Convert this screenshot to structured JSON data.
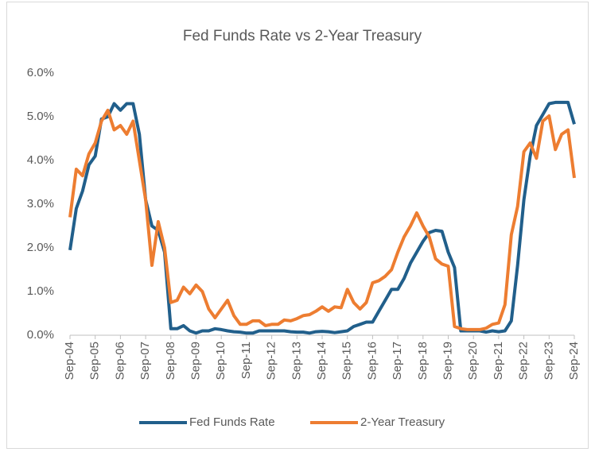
{
  "chart_data": {
    "type": "line",
    "title": "Fed Funds Rate vs 2-Year Treasury",
    "categories": [
      "Sep-04",
      null,
      null,
      null,
      "Sep-05",
      null,
      null,
      null,
      "Sep-06",
      null,
      null,
      null,
      "Sep-07",
      null,
      null,
      null,
      "Sep-08",
      null,
      null,
      null,
      "Sep-09",
      null,
      null,
      null,
      "Sep-10",
      null,
      null,
      null,
      "Sep-11",
      null,
      null,
      null,
      "Sep-12",
      null,
      null,
      null,
      "Sep-13",
      null,
      null,
      null,
      "Sep-14",
      null,
      null,
      null,
      "Sep-15",
      null,
      null,
      null,
      "Sep-16",
      null,
      null,
      null,
      "Sep-17",
      null,
      null,
      null,
      "Sep-18",
      null,
      null,
      null,
      "Sep-19",
      null,
      null,
      null,
      "Sep-20",
      null,
      null,
      null,
      "Sep-21",
      null,
      null,
      null,
      "Sep-22",
      null,
      null,
      null,
      "Sep-23",
      null,
      null,
      null,
      "Sep-24"
    ],
    "series": [
      {
        "name": "Fed Funds Rate",
        "color": "#215f8b",
        "values": [
          1.95,
          2.9,
          3.3,
          3.9,
          4.1,
          4.95,
          5.0,
          5.3,
          5.15,
          5.3,
          5.3,
          4.6,
          3.1,
          2.5,
          2.4,
          1.9,
          0.15,
          0.15,
          0.22,
          0.1,
          0.05,
          0.1,
          0.1,
          0.15,
          0.13,
          0.1,
          0.08,
          0.07,
          0.05,
          0.05,
          0.1,
          0.1,
          0.1,
          0.1,
          0.1,
          0.08,
          0.07,
          0.07,
          0.05,
          0.08,
          0.09,
          0.08,
          0.06,
          0.08,
          0.1,
          0.2,
          0.25,
          0.3,
          0.3,
          0.55,
          0.8,
          1.05,
          1.05,
          1.3,
          1.65,
          1.9,
          2.15,
          2.35,
          2.4,
          2.38,
          1.9,
          1.55,
          0.1,
          0.1,
          0.1,
          0.1,
          0.07,
          0.1,
          0.08,
          0.1,
          0.33,
          1.6,
          3.1,
          4.1,
          4.8,
          5.05,
          5.3,
          5.33,
          5.33,
          5.33,
          4.83
        ]
      },
      {
        "name": "2-Year Treasury",
        "color": "#ed7d31",
        "values": [
          2.7,
          3.8,
          3.65,
          4.15,
          4.4,
          4.9,
          5.15,
          4.7,
          4.8,
          4.6,
          4.9,
          4.0,
          3.1,
          1.6,
          2.6,
          2.0,
          0.75,
          0.8,
          1.1,
          0.95,
          1.15,
          1.0,
          0.6,
          0.4,
          0.6,
          0.8,
          0.45,
          0.25,
          0.25,
          0.33,
          0.33,
          0.22,
          0.25,
          0.25,
          0.35,
          0.33,
          0.38,
          0.45,
          0.47,
          0.55,
          0.65,
          0.55,
          0.65,
          0.63,
          1.05,
          0.75,
          0.6,
          0.75,
          1.2,
          1.25,
          1.35,
          1.5,
          1.9,
          2.25,
          2.5,
          2.8,
          2.5,
          2.25,
          1.75,
          1.63,
          1.58,
          0.2,
          0.15,
          0.13,
          0.13,
          0.13,
          0.16,
          0.25,
          0.28,
          0.7,
          2.3,
          2.95,
          4.2,
          4.4,
          4.05,
          4.9,
          5.02,
          4.25,
          4.6,
          4.7,
          3.6
        ]
      }
    ],
    "ylim": [
      0,
      6
    ],
    "yticks": [
      {
        "value": 0,
        "label": "0.0%"
      },
      {
        "value": 1,
        "label": "1.0%"
      },
      {
        "value": 2,
        "label": "2.0%"
      },
      {
        "value": 3,
        "label": "3.0%"
      },
      {
        "value": 4,
        "label": "4.0%"
      },
      {
        "value": 5,
        "label": "5.0%"
      },
      {
        "value": 6,
        "label": "6.0%"
      }
    ],
    "grid": false,
    "legend": "bottom"
  }
}
